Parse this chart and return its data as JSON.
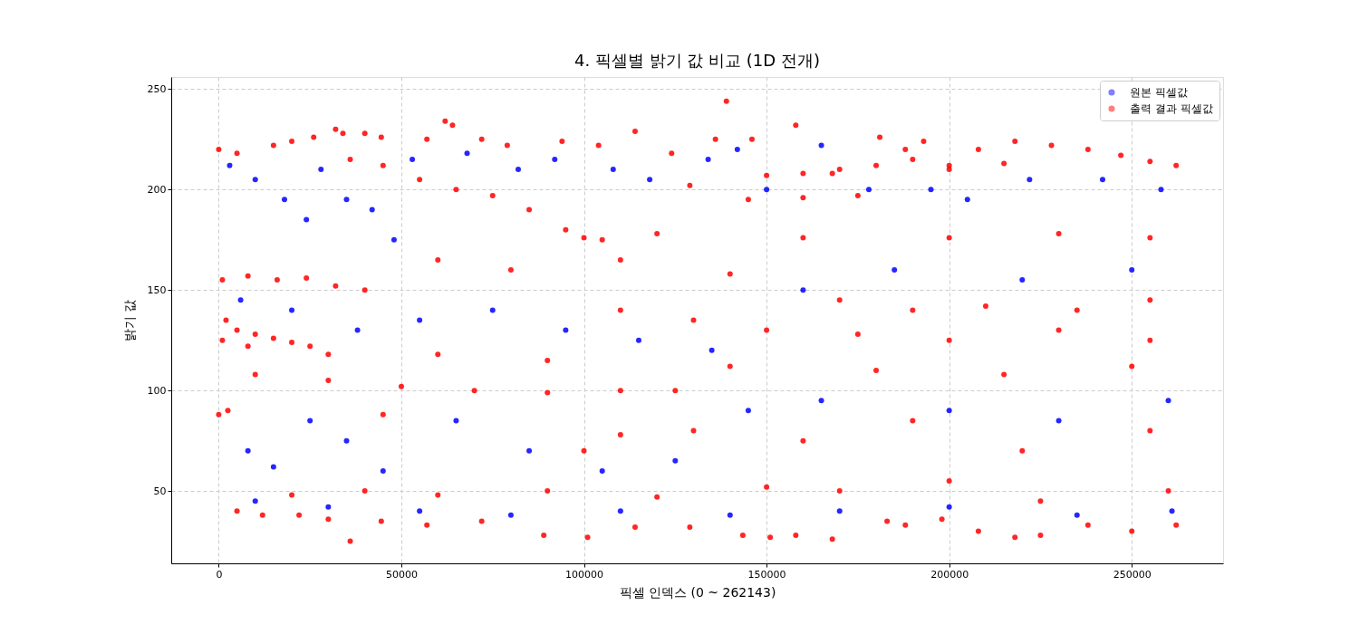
{
  "chart_data": {
    "type": "scatter",
    "title": "4. 픽셀별 밝기 값 비교 (1D 전개)",
    "xlabel": "픽셀 인덱스 (0 ~ 262143)",
    "ylabel": "밝기 값",
    "xlim": [
      -13000,
      275000
    ],
    "ylim": [
      14,
      256
    ],
    "xticks": [
      0,
      50000,
      100000,
      150000,
      200000,
      250000
    ],
    "yticks": [
      50,
      100,
      150,
      200,
      250
    ],
    "grid": true,
    "legend": "top right",
    "marker": "circle",
    "series": [
      {
        "name": "원본 픽셀값",
        "color": "#0000ff",
        "x": [
          3000,
          10000,
          18000,
          24000,
          28000,
          35000,
          42000,
          48000,
          53000,
          68000,
          82000,
          92000,
          108000,
          118000,
          134000,
          142000,
          150000,
          165000,
          178000,
          195000,
          205000,
          222000,
          242000,
          258000,
          6000,
          20000,
          38000,
          55000,
          75000,
          95000,
          115000,
          135000,
          160000,
          185000,
          220000,
          250000,
          8000,
          15000,
          25000,
          35000,
          45000,
          65000,
          85000,
          105000,
          125000,
          145000,
          165000,
          200000,
          230000,
          260000,
          10000,
          30000,
          55000,
          80000,
          110000,
          140000,
          170000,
          200000,
          235000,
          261000
        ],
        "values": [
          212,
          205,
          195,
          185,
          210,
          195,
          190,
          175,
          215,
          218,
          210,
          215,
          210,
          205,
          215,
          220,
          200,
          222,
          200,
          200,
          195,
          205,
          205,
          200,
          145,
          140,
          130,
          135,
          140,
          130,
          125,
          120,
          150,
          160,
          155,
          160,
          70,
          62,
          85,
          75,
          60,
          85,
          70,
          60,
          65,
          90,
          95,
          90,
          85,
          95,
          45,
          42,
          40,
          38,
          40,
          38,
          40,
          42,
          38,
          40
        ]
      },
      {
        "name": "출력 결과 픽셀값",
        "color": "#ff0000",
        "x": [
          0,
          5000,
          15000,
          20000,
          26000,
          32000,
          34000,
          36000,
          40000,
          44500,
          57000,
          62000,
          64000,
          72000,
          79000,
          94000,
          104000,
          114000,
          124000,
          129000,
          136000,
          139000,
          146000,
          158000,
          168000,
          181000,
          188000,
          193000,
          200000,
          208000,
          218000,
          228000,
          238000,
          247000,
          255000,
          262143,
          0,
          2500,
          5000,
          12000,
          22000,
          30000,
          36000,
          44500,
          57000,
          72000,
          89000,
          101000,
          114000,
          129000,
          143500,
          151000,
          158000,
          168000,
          183000,
          188000,
          198000,
          208000,
          218000,
          225000,
          238000,
          250000,
          262143,
          1000,
          5000,
          10000,
          15000,
          20000,
          25000,
          30000,
          2000,
          8000,
          1000,
          8000,
          16000,
          24000,
          32000,
          40000,
          10000,
          30000,
          50000,
          70000,
          90000,
          110000,
          125000,
          20000,
          40000,
          60000,
          90000,
          120000,
          150000,
          170000,
          200000,
          225000,
          260000,
          45000,
          55000,
          65000,
          75000,
          85000,
          95000,
          100000,
          105000,
          120000,
          160000,
          200000,
          230000,
          255000,
          60000,
          80000,
          110000,
          140000,
          170000,
          190000,
          210000,
          235000,
          255000,
          150000,
          160000,
          170000,
          180000,
          190000,
          200000,
          215000,
          145000,
          160000,
          175000,
          110000,
          130000,
          150000,
          175000,
          200000,
          230000,
          255000,
          45000,
          100000,
          110000,
          130000,
          160000,
          190000,
          220000,
          255000,
          60000,
          90000,
          140000,
          180000,
          215000,
          250000
        ],
        "values": [
          220,
          218,
          222,
          224,
          226,
          230,
          228,
          215,
          228,
          226,
          225,
          234,
          232,
          225,
          222,
          224,
          222,
          229,
          218,
          202,
          225,
          244,
          225,
          232,
          208,
          226,
          220,
          224,
          212,
          220,
          224,
          222,
          220,
          217,
          214,
          212,
          88,
          90,
          40,
          38,
          38,
          36,
          25,
          35,
          33,
          35,
          28,
          27,
          32,
          32,
          28,
          27,
          28,
          26,
          35,
          33,
          36,
          30,
          27,
          28,
          33,
          30,
          33,
          125,
          130,
          128,
          126,
          124,
          122,
          118,
          135,
          122,
          155,
          157,
          155,
          156,
          152,
          150,
          108,
          105,
          102,
          100,
          99,
          100,
          100,
          48,
          50,
          48,
          50,
          47,
          52,
          50,
          55,
          45,
          50,
          212,
          205,
          200,
          197,
          190,
          180,
          176,
          175,
          178,
          176,
          176,
          178,
          176,
          165,
          160,
          165,
          158,
          145,
          140,
          142,
          140,
          145,
          207,
          208,
          210,
          212,
          215,
          210,
          213,
          195,
          196,
          197,
          140,
          135,
          130,
          128,
          125,
          130,
          125,
          88,
          70,
          78,
          80,
          75,
          85,
          70,
          80,
          118,
          115,
          112,
          110,
          108,
          112
        ]
      }
    ]
  }
}
